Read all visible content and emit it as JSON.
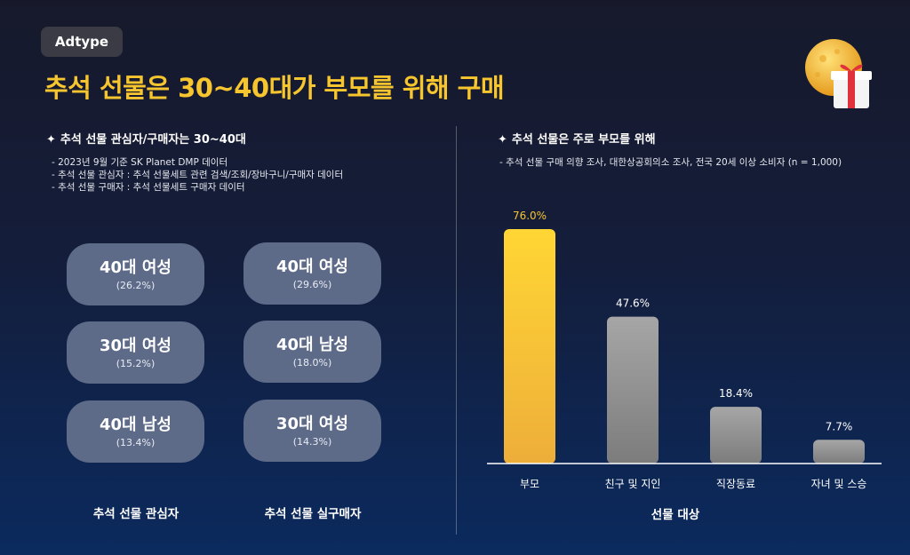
{
  "header": {
    "badge": "Adtype",
    "title": "추석 선물은 30~40대가 부모를 위해 구매"
  },
  "left": {
    "heading": "추석 선물 관심자/구매자는 30~40대",
    "star": "✦",
    "notes": [
      "- 2023년 9월 기준 SK Planet DMP 데이터",
      "- 추석 선물 관심자 : 추석 선물세트 관련 검색/조회/장바구니/구매자 데이터",
      "- 추석 선물 구매자 : 추석 선물세트 구매자 데이터"
    ],
    "interest_col": {
      "label": "추석 선물 관심자",
      "items": [
        {
          "label": "40대 여성",
          "pct": "(26.2%)"
        },
        {
          "label": "30대 여성",
          "pct": "(15.2%)"
        },
        {
          "label": "40대 남성",
          "pct": "(13.4%)"
        }
      ]
    },
    "buyer_col": {
      "label": "추석 선물 실구매자",
      "items": [
        {
          "label": "40대 여성",
          "pct": "(29.6%)"
        },
        {
          "label": "40대 남성",
          "pct": "(18.0%)"
        },
        {
          "label": "30대 여성",
          "pct": "(14.3%)"
        }
      ]
    }
  },
  "right": {
    "heading": "추석 선물은 주로 부모를 위해",
    "star": "✦",
    "note": "- 추석 선물 구매 의향 조사, 대한상공회의소 조사, 전국 20세 이상 소비자 (n = 1,000)"
  },
  "chart_data": {
    "type": "bar",
    "categories": [
      "부모",
      "친구 및 지인",
      "직장동료",
      "자녀 및 스승"
    ],
    "values": [
      76.0,
      47.6,
      18.4,
      7.7
    ],
    "data_labels": [
      "76.0%",
      "47.6%",
      "18.4%",
      "7.7%"
    ],
    "xlabel": "선물 대상",
    "ylabel": "",
    "ylim": [
      0,
      76
    ],
    "grid": false,
    "highlight_color": "#f7c52e",
    "bar_color": "#9c9c9c",
    "highlight_label_color": "#f7c52e"
  }
}
